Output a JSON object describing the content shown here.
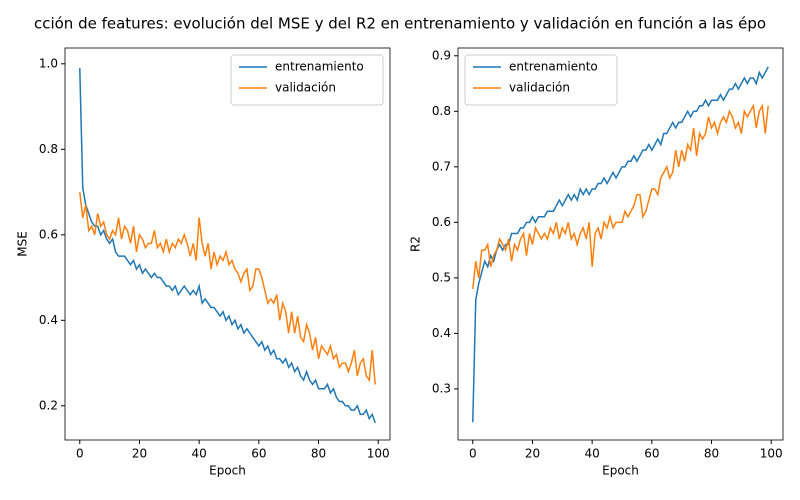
{
  "title": "cción de features: evolución del MSE y del R2 en entrenamiento y validación en función a las épo",
  "chart_data": [
    {
      "type": "line",
      "xlabel": "Epoch",
      "ylabel": "MSE",
      "legend": "upper right",
      "xlim": [
        -4.95,
        103.95
      ],
      "ylim": [
        0.12,
        1.037
      ],
      "xticks": [
        0,
        20,
        40,
        60,
        80,
        100
      ],
      "yticks": [
        0.2,
        0.4,
        0.6,
        0.8,
        {
          "value": 1,
          "label": "1.0"
        }
      ],
      "x": [
        0,
        1,
        2,
        3,
        4,
        5,
        6,
        7,
        8,
        9,
        10,
        11,
        12,
        13,
        14,
        15,
        16,
        17,
        18,
        19,
        20,
        21,
        22,
        23,
        24,
        25,
        26,
        27,
        28,
        29,
        30,
        31,
        32,
        33,
        34,
        35,
        36,
        37,
        38,
        39,
        40,
        41,
        42,
        43,
        44,
        45,
        46,
        47,
        48,
        49,
        50,
        51,
        52,
        53,
        54,
        55,
        56,
        57,
        58,
        59,
        60,
        61,
        62,
        63,
        64,
        65,
        66,
        67,
        68,
        69,
        70,
        71,
        72,
        73,
        74,
        75,
        76,
        77,
        78,
        79,
        80,
        81,
        82,
        83,
        84,
        85,
        86,
        87,
        88,
        89,
        90,
        91,
        92,
        93,
        94,
        95,
        96,
        97,
        98,
        99
      ],
      "series": [
        {
          "name": "entrenamiento",
          "color": "#1f77b4",
          "values": [
            0.99,
            0.71,
            0.67,
            0.65,
            0.63,
            0.62,
            0.62,
            0.6,
            0.61,
            0.59,
            0.58,
            0.59,
            0.56,
            0.55,
            0.55,
            0.55,
            0.54,
            0.53,
            0.54,
            0.52,
            0.53,
            0.51,
            0.52,
            0.51,
            0.5,
            0.51,
            0.5,
            0.5,
            0.49,
            0.48,
            0.48,
            0.47,
            0.48,
            0.46,
            0.47,
            0.48,
            0.47,
            0.46,
            0.47,
            0.46,
            0.48,
            0.44,
            0.45,
            0.44,
            0.43,
            0.43,
            0.42,
            0.41,
            0.42,
            0.4,
            0.41,
            0.39,
            0.4,
            0.38,
            0.39,
            0.37,
            0.38,
            0.37,
            0.36,
            0.35,
            0.34,
            0.35,
            0.33,
            0.34,
            0.32,
            0.33,
            0.31,
            0.31,
            0.3,
            0.31,
            0.29,
            0.3,
            0.28,
            0.29,
            0.27,
            0.26,
            0.28,
            0.26,
            0.25,
            0.26,
            0.24,
            0.24,
            0.24,
            0.25,
            0.23,
            0.24,
            0.22,
            0.21,
            0.21,
            0.2,
            0.2,
            0.19,
            0.19,
            0.2,
            0.18,
            0.18,
            0.19,
            0.17,
            0.18,
            0.16
          ]
        },
        {
          "name": "validación",
          "color": "#ff7f0e",
          "values": [
            0.7,
            0.64,
            0.67,
            0.61,
            0.62,
            0.6,
            0.65,
            0.62,
            0.63,
            0.6,
            0.59,
            0.61,
            0.6,
            0.64,
            0.59,
            0.62,
            0.61,
            0.58,
            0.62,
            0.56,
            0.6,
            0.59,
            0.57,
            0.58,
            0.58,
            0.61,
            0.57,
            0.58,
            0.56,
            0.59,
            0.56,
            0.58,
            0.57,
            0.59,
            0.58,
            0.6,
            0.58,
            0.55,
            0.58,
            0.54,
            0.64,
            0.58,
            0.55,
            0.58,
            0.52,
            0.56,
            0.53,
            0.55,
            0.54,
            0.56,
            0.53,
            0.54,
            0.52,
            0.51,
            0.49,
            0.51,
            0.52,
            0.47,
            0.48,
            0.52,
            0.52,
            0.5,
            0.47,
            0.44,
            0.45,
            0.44,
            0.46,
            0.4,
            0.44,
            0.42,
            0.37,
            0.42,
            0.37,
            0.41,
            0.36,
            0.35,
            0.39,
            0.37,
            0.33,
            0.36,
            0.31,
            0.34,
            0.33,
            0.32,
            0.34,
            0.31,
            0.32,
            0.29,
            0.3,
            0.3,
            0.28,
            0.3,
            0.33,
            0.27,
            0.3,
            0.31,
            0.27,
            0.26,
            0.33,
            0.25
          ]
        }
      ]
    },
    {
      "type": "line",
      "xlabel": "Epoch",
      "ylabel": "R2",
      "legend": "upper left",
      "xlim": [
        -4.95,
        103.95
      ],
      "ylim": [
        0.208,
        0.914
      ],
      "xticks": [
        0,
        20,
        40,
        60,
        80,
        100
      ],
      "yticks": [
        0.3,
        0.4,
        0.5,
        0.6,
        0.7,
        0.8,
        0.9
      ],
      "x": [
        0,
        1,
        2,
        3,
        4,
        5,
        6,
        7,
        8,
        9,
        10,
        11,
        12,
        13,
        14,
        15,
        16,
        17,
        18,
        19,
        20,
        21,
        22,
        23,
        24,
        25,
        26,
        27,
        28,
        29,
        30,
        31,
        32,
        33,
        34,
        35,
        36,
        37,
        38,
        39,
        40,
        41,
        42,
        43,
        44,
        45,
        46,
        47,
        48,
        49,
        50,
        51,
        52,
        53,
        54,
        55,
        56,
        57,
        58,
        59,
        60,
        61,
        62,
        63,
        64,
        65,
        66,
        67,
        68,
        69,
        70,
        71,
        72,
        73,
        74,
        75,
        76,
        77,
        78,
        79,
        80,
        81,
        82,
        83,
        84,
        85,
        86,
        87,
        88,
        89,
        90,
        91,
        92,
        93,
        94,
        95,
        96,
        97,
        98,
        99
      ],
      "series": [
        {
          "name": "entrenamiento",
          "color": "#1f77b4",
          "values": [
            0.24,
            0.46,
            0.49,
            0.51,
            0.53,
            0.52,
            0.54,
            0.53,
            0.55,
            0.56,
            0.55,
            0.56,
            0.56,
            0.58,
            0.58,
            0.58,
            0.59,
            0.59,
            0.6,
            0.6,
            0.61,
            0.6,
            0.61,
            0.61,
            0.61,
            0.62,
            0.62,
            0.62,
            0.63,
            0.64,
            0.63,
            0.64,
            0.65,
            0.64,
            0.65,
            0.64,
            0.66,
            0.65,
            0.66,
            0.65,
            0.66,
            0.66,
            0.67,
            0.67,
            0.68,
            0.67,
            0.68,
            0.69,
            0.68,
            0.69,
            0.7,
            0.7,
            0.71,
            0.71,
            0.72,
            0.71,
            0.72,
            0.73,
            0.73,
            0.74,
            0.73,
            0.74,
            0.75,
            0.74,
            0.76,
            0.76,
            0.77,
            0.78,
            0.77,
            0.78,
            0.78,
            0.79,
            0.8,
            0.79,
            0.8,
            0.8,
            0.81,
            0.81,
            0.82,
            0.81,
            0.82,
            0.82,
            0.82,
            0.83,
            0.82,
            0.83,
            0.84,
            0.84,
            0.85,
            0.84,
            0.85,
            0.86,
            0.85,
            0.86,
            0.86,
            0.85,
            0.87,
            0.86,
            0.87,
            0.88
          ]
        },
        {
          "name": "validación",
          "color": "#ff7f0e",
          "values": [
            0.48,
            0.53,
            0.5,
            0.55,
            0.55,
            0.56,
            0.52,
            0.54,
            0.55,
            0.57,
            0.56,
            0.55,
            0.57,
            0.53,
            0.56,
            0.55,
            0.57,
            0.58,
            0.54,
            0.58,
            0.56,
            0.59,
            0.58,
            0.57,
            0.58,
            0.57,
            0.59,
            0.58,
            0.6,
            0.57,
            0.59,
            0.58,
            0.6,
            0.57,
            0.58,
            0.56,
            0.58,
            0.59,
            0.57,
            0.6,
            0.52,
            0.58,
            0.59,
            0.57,
            0.6,
            0.59,
            0.61,
            0.59,
            0.6,
            0.6,
            0.6,
            0.62,
            0.61,
            0.62,
            0.63,
            0.65,
            0.65,
            0.61,
            0.62,
            0.64,
            0.66,
            0.66,
            0.65,
            0.68,
            0.69,
            0.7,
            0.68,
            0.69,
            0.73,
            0.7,
            0.73,
            0.71,
            0.74,
            0.73,
            0.77,
            0.72,
            0.76,
            0.75,
            0.76,
            0.79,
            0.77,
            0.78,
            0.76,
            0.78,
            0.79,
            0.78,
            0.8,
            0.79,
            0.77,
            0.78,
            0.76,
            0.8,
            0.79,
            0.8,
            0.81,
            0.77,
            0.8,
            0.81,
            0.76,
            0.81
          ]
        }
      ]
    }
  ]
}
